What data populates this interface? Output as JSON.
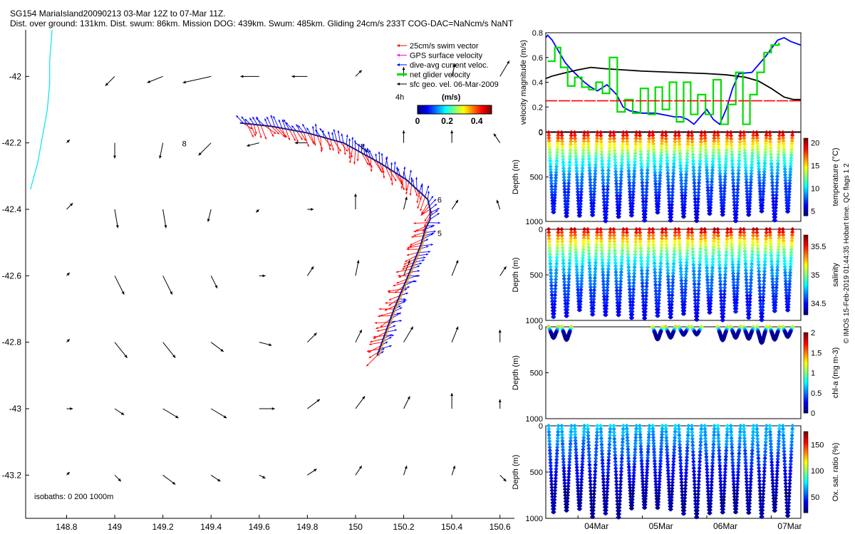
{
  "header": {
    "line1": "SG154 MariaIsland20090213 03-Mar 12Z to 07-Mar 11Z.",
    "line2": "Dist. over ground: 131km. Dist. swum: 86km. Mission DOG: 439km. Swum: 485km. Gliding 24cm/s 233T COG-DAC=NaNcm/s NaNT"
  },
  "colors": {
    "swim_vector": "#ff0000",
    "gps_surface_velocity": "#ff00ff",
    "dive_avg_current": "#0000ff",
    "net_glider_velocity": "#00dd00",
    "sfc_geo_vel": "#000000",
    "coastline": "#00e5ee",
    "threshold_line": "#ff0000"
  },
  "credit": "© IMOS 15-Feb-2019 01:44:35 Hobart time. QC flags 1  2",
  "chart_data": [
    {
      "type": "scatter",
      "xlim": [
        148.63,
        150.66
      ],
      "ylim": [
        -43.33,
        -41.86
      ],
      "xticks": [
        148.8,
        149,
        149.2,
        149.4,
        149.6,
        149.8,
        150,
        150.2,
        150.4,
        150.6
      ],
      "yticks": [
        -42,
        -42.2,
        -42.4,
        -42.6,
        -42.8,
        -43,
        -43.2
      ],
      "legend": {
        "position": "top-right",
        "entries": [
          "25cm/s swim vector",
          "GPS surface velocity",
          "dive-avg current veloc.",
          "net glider velocity",
          "sfc geo. vel. 06-Mar-2009"
        ],
        "scale_label": "4h",
        "units": "(m/s)"
      },
      "colorbar": {
        "ticks": [
          "0",
          "0.2",
          "0.4"
        ],
        "range": [
          0,
          0.5
        ]
      },
      "isobaths_label": "isobaths: 0   200  1000m",
      "track": [
        [
          150.09,
          -42.84
        ],
        [
          150.16,
          -42.7
        ],
        [
          150.23,
          -42.58
        ],
        [
          150.27,
          -42.51
        ],
        [
          150.29,
          -42.46
        ],
        [
          150.31,
          -42.43
        ],
        [
          150.31,
          -42.4
        ],
        [
          150.3,
          -42.37
        ],
        [
          150.21,
          -42.31
        ],
        [
          150.1,
          -42.26
        ],
        [
          149.95,
          -42.2
        ],
        [
          149.8,
          -42.17
        ],
        [
          149.65,
          -42.15
        ],
        [
          149.52,
          -42.14
        ]
      ],
      "day_labels": [
        {
          "label": "5",
          "lon": 150.34,
          "lat": -42.48
        },
        {
          "label": "6",
          "lon": 150.34,
          "lat": -42.38
        },
        {
          "label": "7",
          "lon": 150.02,
          "lat": -42.22
        },
        {
          "label": "8",
          "lon": 149.28,
          "lat": -42.21
        }
      ],
      "geo_lons": [
        148.8,
        149.0,
        149.2,
        149.4,
        149.6,
        149.8,
        150.0,
        150.2,
        150.4,
        150.6
      ],
      "geo_lats": [
        -42.0,
        -42.2,
        -42.4,
        -42.6,
        -42.8,
        -43.0,
        -43.2
      ],
      "geo_u": [
        [
          0.0,
          -0.06,
          -0.1,
          -0.18,
          -0.12,
          -0.1,
          0.04,
          0.0,
          0.02,
          0.06
        ],
        [
          0.02,
          0.0,
          -0.02,
          -0.08,
          -0.08,
          -0.08,
          0.08,
          0.0,
          0.0,
          -0.04
        ],
        [
          0.04,
          0.02,
          0.02,
          -0.02,
          -0.02,
          0.04,
          0.0,
          0.02,
          0.04,
          -0.02
        ],
        [
          0.02,
          0.06,
          0.06,
          0.04,
          0.04,
          0.04,
          0.02,
          0.04,
          0.04,
          0.04
        ],
        [
          0.02,
          0.08,
          0.08,
          0.08,
          0.08,
          0.06,
          0.04,
          0.06,
          0.04,
          0.0
        ],
        [
          0.04,
          0.06,
          0.1,
          0.1,
          0.1,
          0.08,
          0.06,
          0.04,
          0.0,
          0.0
        ],
        [
          0.02,
          0.04,
          0.08,
          0.06,
          0.04,
          0.06,
          0.04,
          0.02,
          0.02,
          0.04
        ]
      ],
      "geo_v": [
        [
          0.0,
          -0.06,
          -0.04,
          -0.04,
          0.0,
          0.0,
          0.04,
          0.06,
          0.08,
          0.1
        ],
        [
          0.02,
          -0.1,
          -0.1,
          -0.08,
          -0.02,
          0.0,
          -0.06,
          0.08,
          0.08,
          0.06
        ],
        [
          0.04,
          -0.12,
          -0.12,
          -0.08,
          -0.02,
          0.0,
          0.1,
          0.08,
          0.06,
          0.06
        ],
        [
          0.02,
          -0.12,
          -0.12,
          -0.08,
          0.0,
          0.06,
          0.1,
          0.1,
          0.1,
          0.06
        ],
        [
          0.02,
          -0.1,
          -0.1,
          -0.06,
          -0.02,
          0.06,
          0.08,
          0.1,
          0.1,
          0.08
        ],
        [
          0.0,
          -0.04,
          -0.06,
          -0.06,
          0.0,
          0.06,
          0.08,
          0.08,
          0.1,
          0.06
        ],
        [
          0.02,
          -0.04,
          -0.06,
          -0.04,
          -0.02,
          0.04,
          0.06,
          0.06,
          0.06,
          -0.04
        ]
      ]
    },
    {
      "type": "line",
      "ylabel": "velocity magnitude (m/s)",
      "ylim": [
        0,
        0.8
      ],
      "yticks": [
        "0",
        "0.2",
        "0.4",
        "0.6",
        "0.8"
      ],
      "xlim": [
        3.5,
        7.46
      ],
      "series": [
        {
          "color": "#0000ff",
          "x": [
            3.5,
            3.53,
            3.6,
            3.7,
            3.8,
            3.9,
            4.0,
            4.1,
            4.2,
            4.3,
            4.45,
            4.6,
            4.7,
            4.8,
            5.0,
            5.2,
            5.4,
            5.5,
            5.6,
            5.7,
            5.8,
            5.9,
            6.0,
            6.1,
            6.2,
            6.3,
            6.4,
            6.5,
            6.7,
            6.9,
            7.1,
            7.2,
            7.3,
            7.46
          ],
          "y": [
            0.76,
            0.78,
            0.74,
            0.65,
            0.56,
            0.5,
            0.45,
            0.4,
            0.36,
            0.33,
            0.38,
            0.3,
            0.2,
            0.17,
            0.15,
            0.15,
            0.13,
            0.12,
            0.12,
            0.1,
            0.06,
            0.12,
            0.18,
            0.1,
            0.06,
            0.18,
            0.35,
            0.47,
            0.48,
            0.6,
            0.74,
            0.76,
            0.73,
            0.7
          ]
        },
        {
          "color": "#000000",
          "x": [
            3.5,
            3.6,
            3.75,
            4.0,
            4.2,
            4.4,
            5.0,
            5.5,
            6.0,
            6.3,
            6.6,
            6.8,
            7.0,
            7.2,
            7.35,
            7.46
          ],
          "y": [
            0.43,
            0.45,
            0.47,
            0.5,
            0.52,
            0.51,
            0.49,
            0.48,
            0.47,
            0.46,
            0.44,
            0.41,
            0.35,
            0.28,
            0.26,
            0.26
          ]
        },
        {
          "color": "#00dd00",
          "step": true,
          "x": [
            3.53,
            3.64,
            3.73,
            3.84,
            3.95,
            4.06,
            4.17,
            4.28,
            4.38,
            4.49,
            4.61,
            4.73,
            4.85,
            4.97,
            5.09,
            5.2,
            5.31,
            5.42,
            5.53,
            5.64,
            5.75,
            5.86,
            5.98,
            6.1,
            6.22,
            6.33,
            6.45,
            6.56,
            6.67,
            6.78,
            6.89,
            7.0,
            7.12
          ],
          "y": [
            0.57,
            0.68,
            0.52,
            0.37,
            0.44,
            0.36,
            0.34,
            0.4,
            0.31,
            0.6,
            0.16,
            0.26,
            0.15,
            0.35,
            0.14,
            0.36,
            0.18,
            0.4,
            0.08,
            0.4,
            0.14,
            0.3,
            0.14,
            0.42,
            0.06,
            0.22,
            0.48,
            0.06,
            0.3,
            0.48,
            0.64,
            0.7,
            0.72
          ]
        },
        {
          "color": "#ff0000",
          "dashed": true,
          "x": [
            3.5,
            7.46
          ],
          "y": [
            0.25,
            0.25
          ]
        }
      ]
    },
    {
      "type": "scatter",
      "ylabel": "Depth (m)",
      "clabel": "temperature (°C)",
      "cticks": [
        "5",
        "10",
        "15",
        "20"
      ],
      "clim": [
        4,
        21
      ],
      "ylim": [
        1000,
        0
      ],
      "surface_value": 20,
      "deep_value": 5,
      "deep_max_depth": 1000
    },
    {
      "type": "scatter",
      "ylabel": "Depth (m)",
      "clabel": "salinity",
      "cticks": [
        "34.5",
        "35",
        "35.5"
      ],
      "clim": [
        34.3,
        35.7
      ],
      "ylim": [
        1000,
        0
      ],
      "surface_value": 35.6,
      "deep_value": 34.4,
      "deep_max_depth": 1000
    },
    {
      "type": "scatter",
      "ylabel": "Depth (m)",
      "clabel": "chl-a (mg m-3)",
      "cticks": [
        "0",
        "0.5",
        "1",
        "1.5",
        "2"
      ],
      "clim": [
        0,
        2
      ],
      "ylim": [
        1000,
        0
      ],
      "surface_value": 1.2,
      "deep_value": 0.05,
      "deep_max_depth": 180
    },
    {
      "type": "scatter",
      "ylabel": "Depth (m)",
      "clabel": "Ox. sat. ratio (%)",
      "cticks": [
        "50",
        "100",
        "150"
      ],
      "clim": [
        20,
        175
      ],
      "ylim": [
        1000,
        0
      ],
      "xticks": [
        "04Mar",
        "05Mar",
        "06Mar",
        "07Mar"
      ],
      "surface_value": 70,
      "deep_value": 25,
      "deep_max_depth": 1000
    }
  ]
}
